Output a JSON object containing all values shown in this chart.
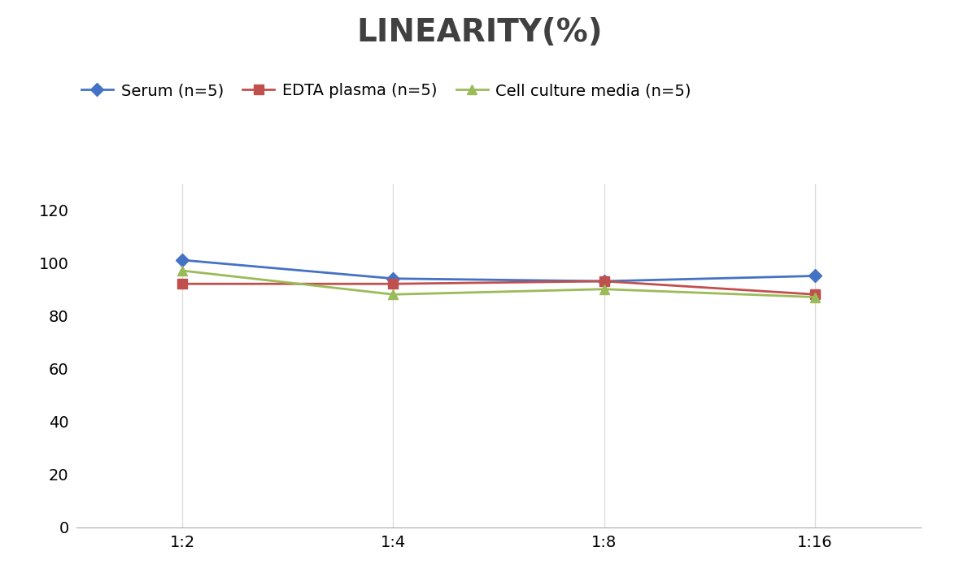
{
  "title": "LINEARITY(%)",
  "x_labels": [
    "1:2",
    "1:4",
    "1:8",
    "1:16"
  ],
  "x_positions": [
    0,
    1,
    2,
    3
  ],
  "series": [
    {
      "label": "Serum (n=5)",
      "values": [
        101,
        94,
        93,
        95
      ],
      "color": "#4472C4",
      "marker": "D",
      "markersize": 8,
      "linewidth": 2
    },
    {
      "label": "EDTA plasma (n=5)",
      "values": [
        92,
        92,
        93,
        88
      ],
      "color": "#C0504D",
      "marker": "s",
      "markersize": 8,
      "linewidth": 2
    },
    {
      "label": "Cell culture media (n=5)",
      "values": [
        97,
        88,
        90,
        87
      ],
      "color": "#9BBB59",
      "marker": "^",
      "markersize": 9,
      "linewidth": 2
    }
  ],
  "ylim": [
    0,
    130
  ],
  "yticks": [
    0,
    20,
    40,
    60,
    80,
    100,
    120
  ],
  "grid_color": "#DDDDDD",
  "background_color": "#FFFFFF",
  "title_fontsize": 28,
  "title_fontweight": "bold",
  "legend_fontsize": 14,
  "tick_fontsize": 14
}
